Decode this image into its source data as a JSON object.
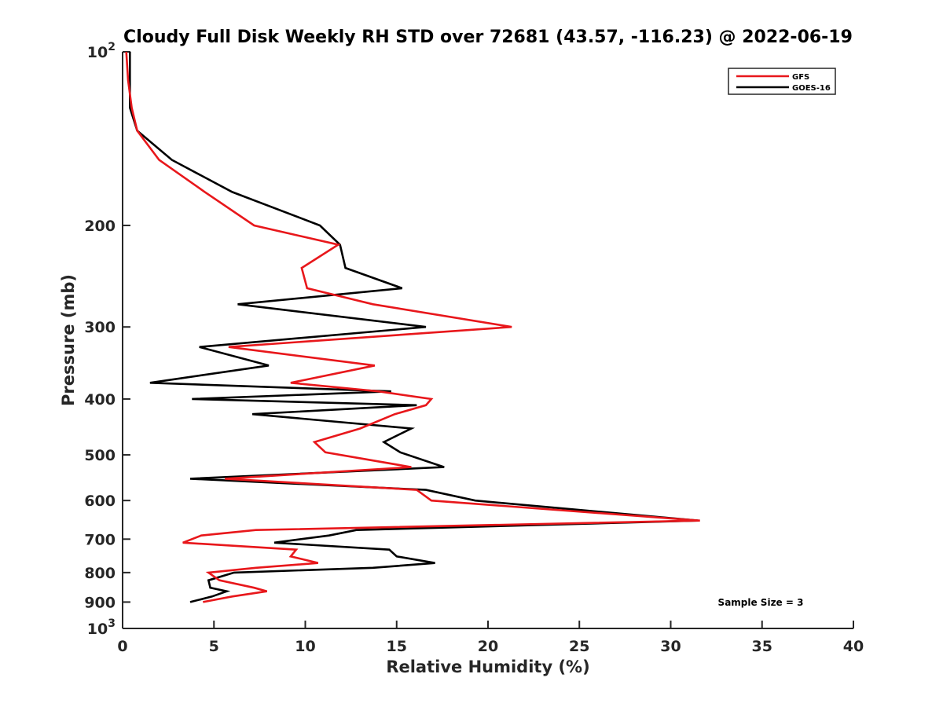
{
  "chart_data": {
    "type": "line",
    "title": "Cloudy Full Disk Weekly RH STD over 72681 (43.57, -116.23) @ 2022-06-19",
    "xlabel": "Relative Humidity (%)",
    "ylabel": "Pressure (mb)",
    "xlim": [
      0,
      40
    ],
    "ylim": [
      100,
      1000
    ],
    "y_scale": "log",
    "y_reversed": true,
    "x_ticks": [
      0,
      5,
      10,
      15,
      20,
      25,
      30,
      35,
      40
    ],
    "x_tick_labels": [
      "0",
      "5",
      "10",
      "15",
      "20",
      "25",
      "30",
      "35",
      "40"
    ],
    "y_ticks": [
      100,
      200,
      300,
      400,
      500,
      600,
      700,
      800,
      900,
      1000
    ],
    "y_tick_labels": [
      {
        "base": "10",
        "exp": "2"
      },
      {
        "base": "200"
      },
      {
        "base": "300"
      },
      {
        "base": "400"
      },
      {
        "base": "500"
      },
      {
        "base": "600"
      },
      {
        "base": "700"
      },
      {
        "base": "800"
      },
      {
        "base": "900"
      },
      {
        "base": "10",
        "exp": "3"
      }
    ],
    "grid": false,
    "legend_position": "top-right",
    "annotation": "Sample Size = 3",
    "series": [
      {
        "name": "GFS",
        "color": "#e8171b",
        "x": [
          0.2,
          0.3,
          0.5,
          0.8,
          2.0,
          4.5,
          7.2,
          11.8,
          9.8,
          10.1,
          13.7,
          21.3,
          5.8,
          13.8,
          9.2,
          14.0,
          16.9,
          16.6,
          14.9,
          13.0,
          10.5,
          11.1,
          15.8,
          5.6,
          16.1,
          16.9,
          31.6,
          7.3,
          4.3,
          3.3,
          9.5,
          9.2,
          10.7,
          7.3,
          4.7,
          5.3,
          7.2,
          7.9,
          6.0,
          4.4
        ],
        "y": [
          100,
          112,
          125,
          137,
          154,
          175,
          200,
          216,
          237,
          257,
          274,
          300,
          325,
          350,
          375,
          388,
          400,
          410,
          425,
          450,
          475,
          495,
          525,
          550,
          575,
          600,
          650,
          675,
          690,
          710,
          730,
          750,
          770,
          785,
          800,
          825,
          850,
          862,
          880,
          900
        ]
      },
      {
        "name": "GOES-16",
        "color": "#000000",
        "x": [
          0.4,
          0.4,
          0.4,
          0.8,
          2.7,
          6.0,
          10.8,
          11.9,
          12.2,
          15.3,
          6.3,
          16.6,
          4.2,
          8.0,
          1.5,
          14.7,
          3.8,
          16.1,
          7.1,
          15.8,
          14.3,
          15.2,
          17.6,
          3.7,
          16.6,
          19.3,
          31.5,
          12.8,
          11.3,
          8.3,
          14.6,
          15.0,
          17.1,
          13.7,
          6.1,
          4.7,
          4.8,
          5.7,
          4.9,
          3.7
        ],
        "y": [
          100,
          112,
          125,
          137,
          154,
          175,
          200,
          216,
          237,
          257,
          274,
          300,
          325,
          350,
          375,
          388,
          400,
          410,
          425,
          450,
          475,
          495,
          525,
          550,
          575,
          600,
          650,
          675,
          690,
          710,
          730,
          750,
          770,
          785,
          800,
          825,
          850,
          862,
          880,
          900
        ]
      }
    ]
  }
}
